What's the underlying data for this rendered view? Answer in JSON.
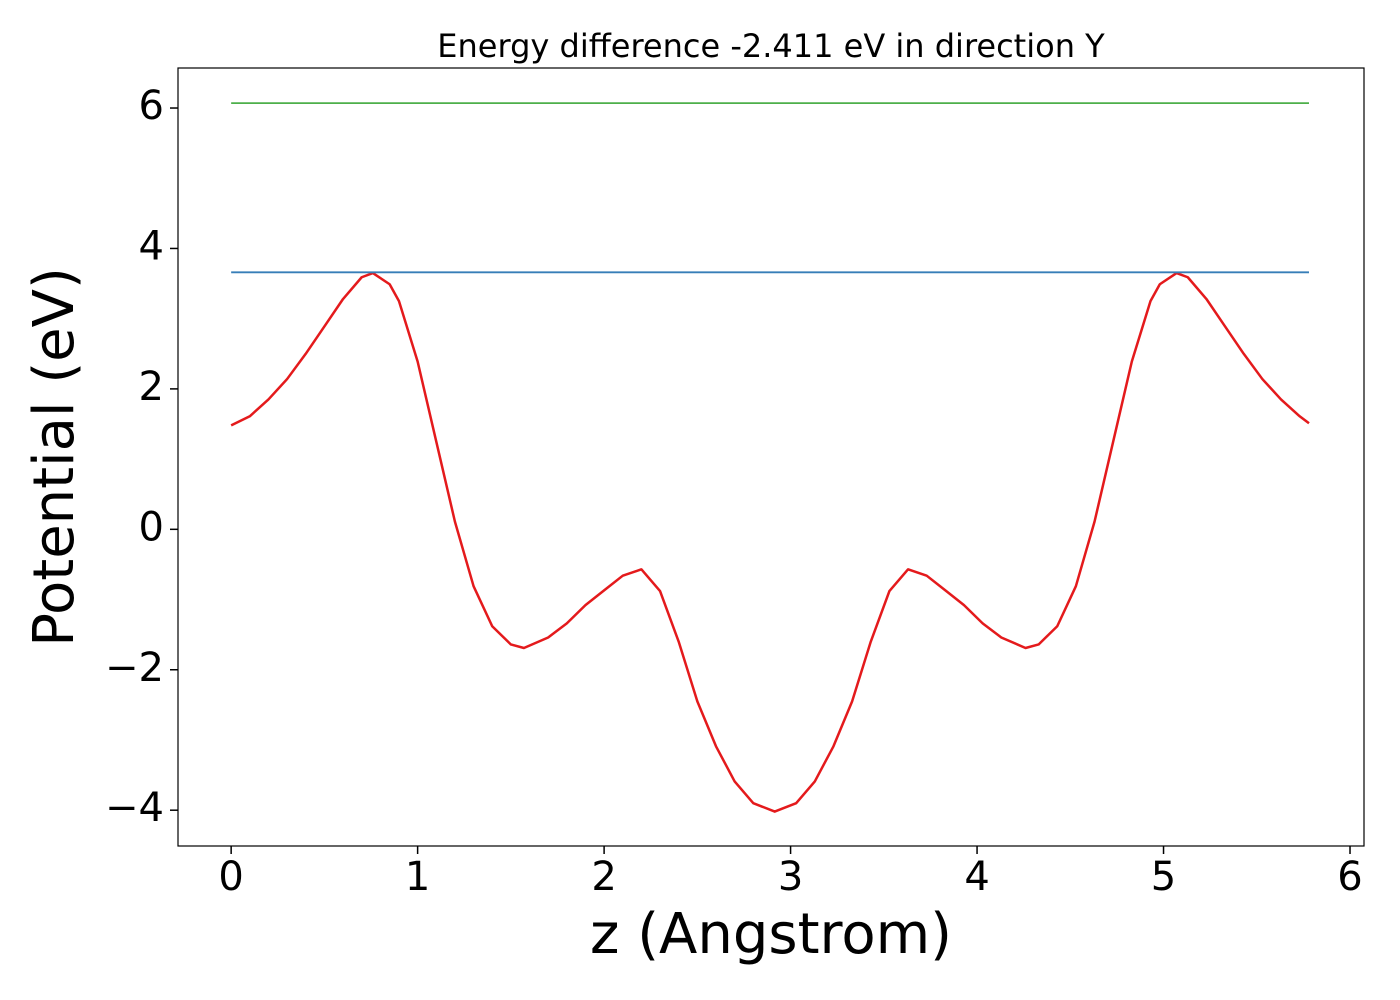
{
  "chart_data": {
    "type": "line",
    "title": "Energy difference -2.411 eV in direction Y",
    "xlabel": "z (Angstrom)",
    "ylabel": "Potential (eV)",
    "xlim": [
      -0.285,
      6.075
    ],
    "ylim": [
      -4.51,
      6.57
    ],
    "xticks": [
      0,
      1,
      2,
      3,
      4,
      5,
      6
    ],
    "yticks": [
      {
        "value": -4,
        "label": "−4"
      },
      {
        "value": -2,
        "label": "−2"
      },
      0,
      2,
      4,
      6
    ],
    "series": [
      {
        "color": "#e41a1c",
        "x": [
          0,
          0.1,
          0.2,
          0.3,
          0.4,
          0.5,
          0.6,
          0.7,
          0.76,
          0.85,
          0.9,
          1.0,
          1.1,
          1.2,
          1.3,
          1.4,
          1.5,
          1.57,
          1.7,
          1.8,
          1.9,
          2.0,
          2.1,
          2.2,
          2.3,
          2.4,
          2.5,
          2.6,
          2.7,
          2.8,
          2.915,
          3.03,
          3.13,
          3.23,
          3.33,
          3.43,
          3.53,
          3.63,
          3.73,
          3.83,
          3.93,
          4.03,
          4.13,
          4.26,
          4.33,
          4.43,
          4.53,
          4.63,
          4.73,
          4.83,
          4.93,
          4.98,
          5.07,
          5.13,
          5.23,
          5.33,
          5.43,
          5.53,
          5.63,
          5.73,
          5.78
        ],
        "values": [
          1.48,
          1.61,
          1.85,
          2.14,
          2.5,
          2.89,
          3.28,
          3.59,
          3.65,
          3.49,
          3.25,
          2.39,
          1.25,
          0.11,
          -0.81,
          -1.38,
          -1.64,
          -1.69,
          -1.54,
          -1.34,
          -1.08,
          -0.87,
          -0.66,
          -0.57,
          -0.88,
          -1.6,
          -2.45,
          -3.09,
          -3.59,
          -3.9,
          -4.02,
          -3.9,
          -3.59,
          -3.09,
          -2.45,
          -1.6,
          -0.88,
          -0.57,
          -0.66,
          -0.87,
          -1.08,
          -1.34,
          -1.54,
          -1.69,
          -1.64,
          -1.38,
          -0.81,
          0.11,
          1.25,
          2.39,
          3.25,
          3.49,
          3.65,
          3.59,
          3.28,
          2.89,
          2.5,
          2.14,
          1.85,
          1.61,
          1.51
        ]
      },
      {
        "color": "#377eb8",
        "x": [
          0,
          5.78
        ],
        "values": [
          3.66,
          3.66
        ]
      },
      {
        "color": "#4daf4a",
        "x": [
          0,
          5.78
        ],
        "values": [
          6.07,
          6.07
        ]
      }
    ]
  }
}
